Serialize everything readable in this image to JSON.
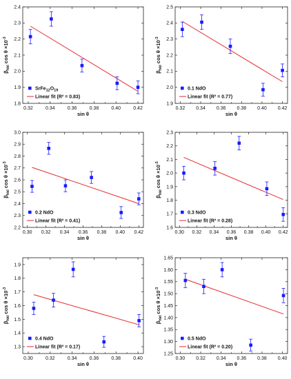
{
  "colors": {
    "points": "#1a1aff",
    "fit": "#e8262b",
    "axis": "#222222"
  },
  "chart_data": [
    {
      "type": "scatter",
      "panel": "a",
      "xlabel": "sin θ",
      "ylabel": "β_hkl cos θ ×10^-3",
      "xlim": [
        0.315,
        0.425
      ],
      "ylim": [
        1.8,
        2.4
      ],
      "xticks": [
        0.32,
        0.34,
        0.36,
        0.38,
        0.4,
        0.42
      ],
      "yticks": [
        1.8,
        1.9,
        2.0,
        2.1,
        2.2,
        2.3,
        2.4
      ],
      "series": [
        {
          "name": "SrFe12O19",
          "x": [
            0.322,
            0.341,
            0.369,
            0.401,
            0.42
          ],
          "y": [
            2.215,
            2.325,
            2.035,
            1.925,
            1.9
          ],
          "err": [
            0.045,
            0.045,
            0.04,
            0.04,
            0.04
          ]
        },
        {
          "name": "Linear fit (R² = 0.83)",
          "kind": "line",
          "x": [
            0.322,
            0.42
          ],
          "y": [
            2.28,
            1.875
          ]
        }
      ],
      "legend": {
        "position": "bottom-left"
      }
    },
    {
      "type": "scatter",
      "panel": "b",
      "xlabel": "sin θ",
      "ylabel": "β_hkl cos θ ×10^-3",
      "xlim": [
        0.315,
        0.425
      ],
      "ylim": [
        1.9,
        2.5
      ],
      "xticks": [
        0.32,
        0.34,
        0.36,
        0.38,
        0.4,
        0.42
      ],
      "yticks": [
        1.9,
        2.0,
        2.1,
        2.2,
        2.3,
        2.4,
        2.5
      ],
      "series": [
        {
          "name": "0.1 NdO",
          "x": [
            0.322,
            0.341,
            0.369,
            0.401,
            0.42
          ],
          "y": [
            2.36,
            2.405,
            2.255,
            1.985,
            2.105
          ],
          "err": [
            0.045,
            0.045,
            0.045,
            0.04,
            0.04
          ]
        },
        {
          "name": "Linear fit (R² = 0.77)",
          "kind": "line",
          "x": [
            0.322,
            0.42
          ],
          "y": [
            2.41,
            2.035
          ]
        }
      ],
      "legend": {
        "position": "bottom-left"
      }
    },
    {
      "type": "scatter",
      "panel": "c",
      "xlabel": "sin θ",
      "ylabel": "β_hkl cos θ ×10^-3",
      "xlim": [
        0.295,
        0.425
      ],
      "ylim": [
        2.2,
        3.0
      ],
      "xticks": [
        0.3,
        0.32,
        0.34,
        0.36,
        0.38,
        0.4,
        0.42
      ],
      "yticks": [
        2.2,
        2.3,
        2.4,
        2.5,
        2.6,
        2.7,
        2.8,
        2.9,
        3.0
      ],
      "series": [
        {
          "name": "0.2 NdO",
          "x": [
            0.305,
            0.323,
            0.341,
            0.369,
            0.401,
            0.42
          ],
          "y": [
            2.545,
            2.865,
            2.55,
            2.62,
            2.325,
            2.44
          ],
          "err": [
            0.05,
            0.05,
            0.05,
            0.05,
            0.05,
            0.05
          ]
        },
        {
          "name": "Linear fit (R² = 0.41)",
          "kind": "line",
          "x": [
            0.305,
            0.42
          ],
          "y": [
            2.705,
            2.4
          ]
        }
      ],
      "legend": {
        "position": "bottom-left"
      }
    },
    {
      "type": "scatter",
      "panel": "d",
      "xlabel": "sin θ",
      "ylabel": "β_hkl cos θ ×10^-3",
      "xlim": [
        0.295,
        0.425
      ],
      "ylim": [
        1.6,
        2.3
      ],
      "xticks": [
        0.3,
        0.32,
        0.34,
        0.36,
        0.38,
        0.4,
        0.42
      ],
      "yticks": [
        1.6,
        1.7,
        1.8,
        1.9,
        2.0,
        2.1,
        2.2,
        2.3
      ],
      "series": [
        {
          "name": "0.3 NdO",
          "x": [
            0.305,
            0.341,
            0.369,
            0.401,
            0.42
          ],
          "y": [
            2.0,
            2.035,
            2.22,
            1.885,
            1.695
          ],
          "err": [
            0.05,
            0.05,
            0.05,
            0.05,
            0.05
          ]
        },
        {
          "name": "Linear fit (R² = 0.28)",
          "kind": "line",
          "x": [
            0.305,
            0.42
          ],
          "y": [
            2.115,
            1.805
          ]
        }
      ],
      "legend": {
        "position": "bottom-left"
      }
    },
    {
      "type": "scatter",
      "panel": "e",
      "xlabel": "sin θ",
      "ylabel": "β_hkl cos θ ×10^-3",
      "xlim": [
        0.295,
        0.405
      ],
      "ylim": [
        1.25,
        1.95
      ],
      "xticks": [
        0.3,
        0.32,
        0.34,
        0.36,
        0.38,
        0.4
      ],
      "yticks": [
        1.3,
        1.4,
        1.5,
        1.6,
        1.7,
        1.8,
        1.9
      ],
      "series": [
        {
          "name": "0.4 NdO",
          "x": [
            0.305,
            0.323,
            0.341,
            0.369,
            0.401
          ],
          "y": [
            1.58,
            1.64,
            1.865,
            1.335,
            1.49
          ],
          "err": [
            0.045,
            0.05,
            0.055,
            0.04,
            0.045
          ]
        },
        {
          "name": "Linear fit (R² = 0.17)",
          "kind": "line",
          "x": [
            0.305,
            0.401
          ],
          "y": [
            1.68,
            1.46
          ]
        }
      ],
      "legend": {
        "position": "bottom-left"
      }
    },
    {
      "type": "scatter",
      "panel": "f",
      "xlabel": "sin θ",
      "ylabel": "β_hkl cos θ ×10^-3",
      "xlim": [
        0.295,
        0.405
      ],
      "ylim": [
        1.25,
        1.65
      ],
      "xticks": [
        0.3,
        0.32,
        0.34,
        0.36,
        0.38,
        0.4
      ],
      "yticks": [
        1.25,
        1.3,
        1.35,
        1.4,
        1.45,
        1.5,
        1.55,
        1.6,
        1.65
      ],
      "series": [
        {
          "name": "0.5 NdO",
          "x": [
            0.305,
            0.323,
            0.341,
            0.369,
            0.401
          ],
          "y": [
            1.555,
            1.53,
            1.6,
            1.285,
            1.492
          ],
          "err": [
            0.03,
            0.03,
            0.03,
            0.025,
            0.03
          ]
        },
        {
          "name": "Linear fit (R² = 0.20)",
          "kind": "line",
          "x": [
            0.305,
            0.401
          ],
          "y": [
            1.56,
            1.415
          ]
        }
      ],
      "legend": {
        "position": "bottom-left"
      }
    }
  ]
}
